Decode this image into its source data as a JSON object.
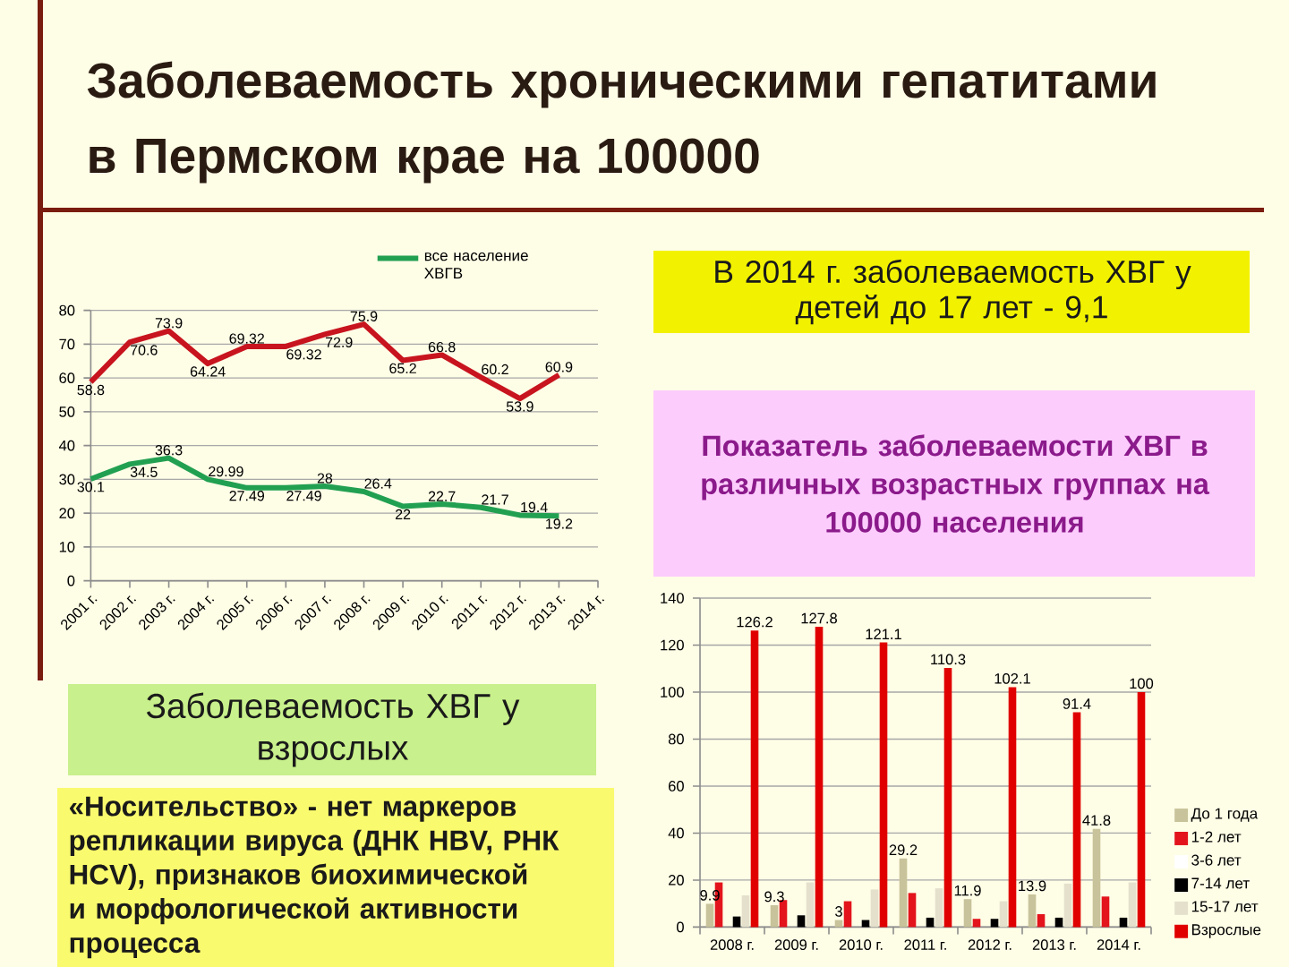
{
  "chart_data": [
    {
      "type": "line",
      "title": "Заболеваемость хроническими гепатитами в Пермском крае на 100000",
      "categories": [
        "2001 г.",
        "2002 г.",
        "2003 г.",
        "2004 г.",
        "2005 г.",
        "2006 г.",
        "2007 г.",
        "2008 г.",
        "2009 г.",
        "2010 г.",
        "2011 г.",
        "2012 г.",
        "2013 г.",
        "2014 г."
      ],
      "series": [
        {
          "color": "#c8141e",
          "values": [
            58.8,
            70.6,
            73.9,
            64.24,
            69.32,
            69.32,
            72.9,
            75.9,
            65.2,
            66.8,
            60.2,
            53.9,
            60.9,
            null
          ]
        },
        {
          "name": "все население ХВГВ",
          "color": "#22a052",
          "values": [
            30.1,
            34.5,
            36.3,
            29.99,
            27.49,
            27.49,
            28,
            26.4,
            22,
            22.7,
            21.7,
            19.4,
            19.2,
            null
          ]
        }
      ],
      "ylim": [
        0,
        80
      ],
      "yticks": [
        0,
        10,
        20,
        30,
        40,
        50,
        60,
        70,
        80
      ],
      "grid": "y",
      "legend": "top right",
      "data_labels": true,
      "annotations": [
        "Заболеваемость ХВГ у взрослых",
        "«Носительство» - нет маркеров репликации вируса (ДНК HBV, РНК HCV), признаков биохимической и морфологической активности процесса"
      ]
    },
    {
      "type": "bar",
      "title": "Показатель заболеваемости ХВГ в различных возрастных группах на 100000 населения",
      "categories": [
        "2008 г.",
        "2009 г.",
        "2010 г.",
        "2011 г.",
        "2012 г.",
        "2013 г.",
        "2014 г."
      ],
      "series": [
        {
          "name": "До 1 года",
          "color": "#c8c39a",
          "values": [
            9.9,
            9.3,
            3,
            29.2,
            11.9,
            13.9,
            41.8
          ],
          "value_labels": [
            "9.9",
            "9.3",
            "3",
            "29.2",
            "11.9",
            "13.9",
            "41.8"
          ]
        },
        {
          "name": "1-2 лет",
          "color": "#e3141c",
          "values": [
            19,
            11.5,
            11,
            14.5,
            3.5,
            5.5,
            13
          ]
        },
        {
          "name": "3-6 лет",
          "color": "#ffffff",
          "values": [
            null,
            null,
            null,
            null,
            null,
            null,
            null
          ]
        },
        {
          "name": "7-14 лет",
          "color": "#000000",
          "values": [
            4.5,
            5,
            3,
            4,
            3.5,
            4,
            4
          ]
        },
        {
          "name": "15-17 лет",
          "color": "#e4e0cc",
          "values": [
            13.5,
            19,
            16,
            16.5,
            11,
            18.5,
            19
          ]
        },
        {
          "name": "Взрослые",
          "color": "#e00000",
          "values": [
            126.2,
            127.8,
            121.1,
            110.3,
            102.1,
            91.4,
            100
          ],
          "value_labels": [
            "126.2",
            "127.8",
            "121.1",
            "110.3",
            "102.1",
            "91.4",
            "100"
          ]
        }
      ],
      "ylim": [
        0,
        140
      ],
      "yticks": [
        0,
        20,
        40,
        60,
        80,
        100,
        120,
        140
      ],
      "grid": "y",
      "legend": "right",
      "annotations": [
        "В 2014 г. заболеваемость ХВГ у детей до 17 лет - 9,1"
      ]
    }
  ]
}
